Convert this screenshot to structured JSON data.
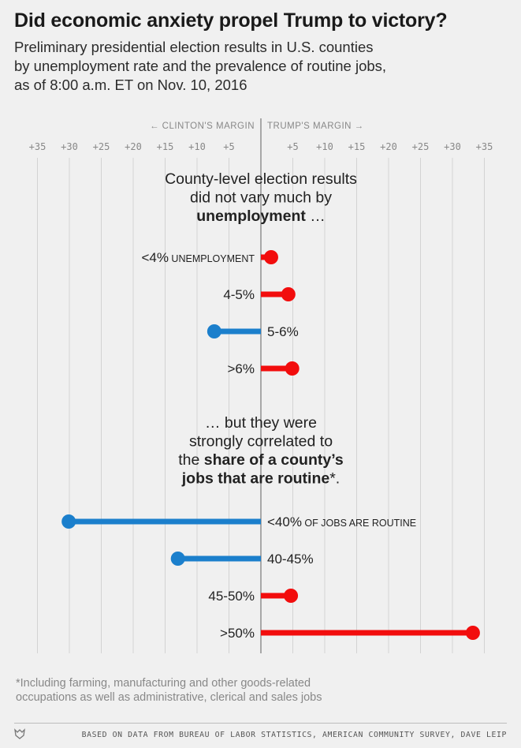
{
  "header": {
    "title": "Did economic anxiety propel Trump to victory?",
    "subtitle_lines": [
      "Preliminary presidential election results in U.S. counties",
      "by unemployment rate and the prevalence of routine jobs,",
      "as of 8:00 a.m. ET on Nov. 10, 2016"
    ]
  },
  "chart_data": {
    "type": "dot-bar",
    "axis": {
      "clinton_label": "← CLINTON'S MARGIN",
      "trump_label": "TRUMP'S MARGIN →",
      "ticks": [
        -35,
        -30,
        -25,
        -20,
        -15,
        -10,
        -5,
        5,
        10,
        15,
        20,
        25,
        30,
        35
      ],
      "tick_labels": [
        "+35",
        "+30",
        "+25",
        "+20",
        "+15",
        "+10",
        "+5",
        "+5",
        "+10",
        "+15",
        "+20",
        "+25",
        "+30",
        "+35"
      ],
      "xlim": [
        -35,
        35
      ],
      "gridlines": [
        -35,
        -30,
        -25,
        -20,
        -15,
        -10,
        -5,
        5,
        10,
        15,
        20,
        25,
        30,
        35
      ]
    },
    "colors": {
      "clinton": "#1b7fcc",
      "trump": "#f20d0d"
    },
    "sections": [
      {
        "annotation": [
          [
            {
              "text": "County-level election results",
              "bold": false
            }
          ],
          [
            {
              "text": "did not vary much by",
              "bold": false
            }
          ],
          [
            {
              "text": "unemployment",
              "bold": true
            },
            {
              "text": " …",
              "bold": false
            }
          ]
        ],
        "rows": [
          {
            "label": "<4%",
            "suffix": " UNEMPLOYMENT",
            "value": 1.6
          },
          {
            "label": "4-5%",
            "suffix": "",
            "value": 4.3
          },
          {
            "label": "5-6%",
            "suffix": "",
            "value": -7.3
          },
          {
            "label": ">6%",
            "suffix": "",
            "value": 4.9
          }
        ]
      },
      {
        "annotation": [
          [
            {
              "text": "… but they were",
              "bold": false
            }
          ],
          [
            {
              "text": "strongly correlated to",
              "bold": false
            }
          ],
          [
            {
              "text": "the ",
              "bold": false
            },
            {
              "text": "share of a county’s",
              "bold": true
            }
          ],
          [
            {
              "text": "jobs that are routine",
              "bold": true
            },
            {
              "text": "*.",
              "bold": false
            }
          ]
        ],
        "rows": [
          {
            "label": "<40%",
            "suffix": " OF JOBS ARE ROUTINE",
            "value": -30.1
          },
          {
            "label": "40-45%",
            "suffix": "",
            "value": -13.0
          },
          {
            "label": "45-50%",
            "suffix": "",
            "value": 4.7
          },
          {
            "label": ">50%",
            "suffix": "",
            "value": 33.2
          }
        ]
      }
    ]
  },
  "footnote_lines": [
    "*Including farming, manufacturing and other goods-related",
    "occupations as well as administrative, clerical and sales jobs"
  ],
  "footer": {
    "logo": "fivethirtyeight-fox-icon",
    "source": "BASED ON DATA FROM BUREAU OF LABOR STATISTICS, AMERICAN COMMUNITY SURVEY, DAVE LEIP"
  }
}
